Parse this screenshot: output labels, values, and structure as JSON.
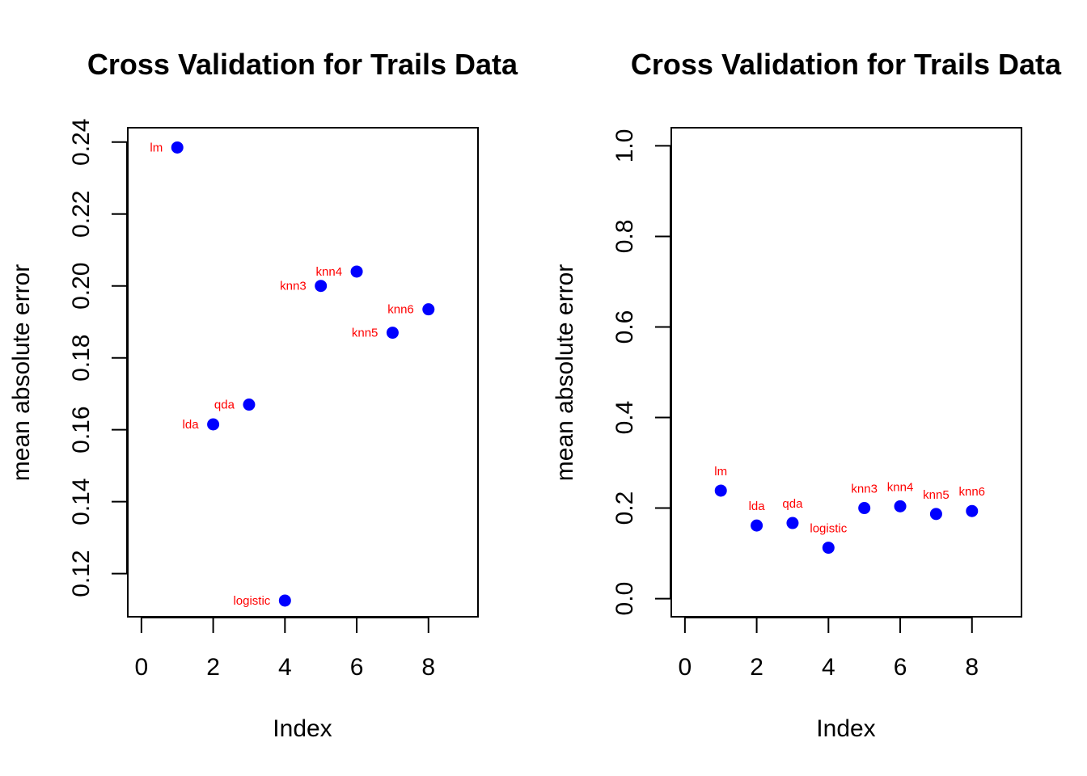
{
  "colors": {
    "point": "#0000ff",
    "label": "#ff0000",
    "axis": "#000000"
  },
  "chart_data": [
    {
      "type": "scatter",
      "title": "Cross Validation for Trails Data",
      "xlabel": "Index",
      "ylabel": "mean absolute error",
      "xlim": [
        -0.38,
        9.38
      ],
      "ylim": [
        0.108,
        0.244
      ],
      "xticks": [
        0,
        2,
        4,
        6,
        8
      ],
      "xtick_labels": [
        "0",
        "2",
        "4",
        "6",
        "8"
      ],
      "yticks": [
        0.12,
        0.14,
        0.16,
        0.18,
        0.2,
        0.22,
        0.24
      ],
      "ytick_labels": [
        "0.12",
        "0.14",
        "0.16",
        "0.18",
        "0.20",
        "0.22",
        "0.24"
      ],
      "label_pos": "left",
      "points": [
        {
          "x": 1,
          "y": 0.2385,
          "label": "lm"
        },
        {
          "x": 2,
          "y": 0.1615,
          "label": "lda"
        },
        {
          "x": 3,
          "y": 0.167,
          "label": "qda"
        },
        {
          "x": 4,
          "y": 0.1125,
          "label": "logistic"
        },
        {
          "x": 5,
          "y": 0.2,
          "label": "knn3"
        },
        {
          "x": 6,
          "y": 0.204,
          "label": "knn4"
        },
        {
          "x": 7,
          "y": 0.187,
          "label": "knn5"
        },
        {
          "x": 8,
          "y": 0.1935,
          "label": "knn6"
        }
      ]
    },
    {
      "type": "scatter",
      "title": "Cross Validation for Trails Data",
      "xlabel": "Index",
      "ylabel": "mean absolute error",
      "xlim": [
        -0.38,
        9.38
      ],
      "ylim": [
        -0.04,
        1.04
      ],
      "xticks": [
        0,
        2,
        4,
        6,
        8
      ],
      "xtick_labels": [
        "0",
        "2",
        "4",
        "6",
        "8"
      ],
      "yticks": [
        0,
        0.2,
        0.4,
        0.6,
        0.8,
        1.0
      ],
      "ytick_labels": [
        "0.0",
        "0.2",
        "0.4",
        "0.6",
        "0.8",
        "1.0"
      ],
      "label_pos": "above",
      "points": [
        {
          "x": 1,
          "y": 0.2385,
          "label": "lm"
        },
        {
          "x": 2,
          "y": 0.1615,
          "label": "lda"
        },
        {
          "x": 3,
          "y": 0.167,
          "label": "qda"
        },
        {
          "x": 4,
          "y": 0.1125,
          "label": "logistic"
        },
        {
          "x": 5,
          "y": 0.2,
          "label": "knn3"
        },
        {
          "x": 6,
          "y": 0.204,
          "label": "knn4"
        },
        {
          "x": 7,
          "y": 0.187,
          "label": "knn5"
        },
        {
          "x": 8,
          "y": 0.1935,
          "label": "knn6"
        }
      ]
    }
  ]
}
